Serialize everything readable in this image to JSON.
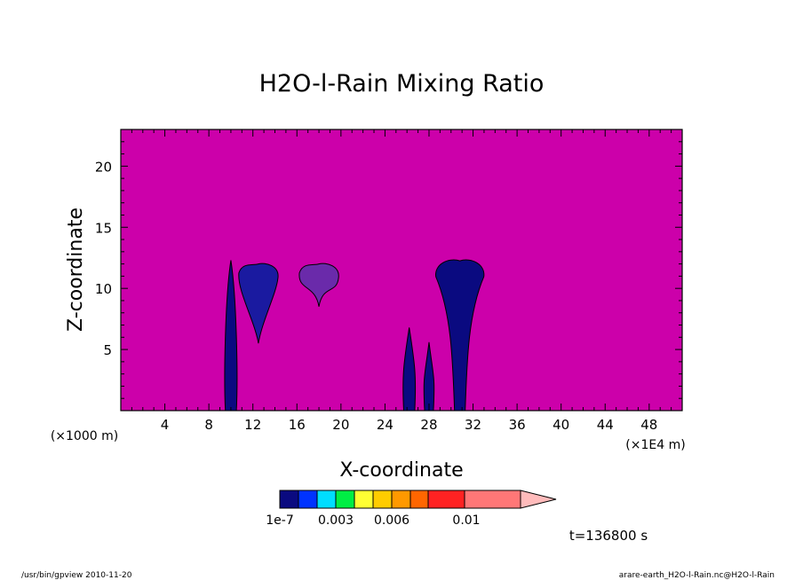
{
  "chart_data": {
    "type": "heatmap",
    "title": "H2O-l-Rain Mixing Ratio",
    "xlabel": "X-coordinate",
    "ylabel": "Z-coordinate",
    "x_unit_left": "(×1000 m)",
    "x_unit_right": "(×1E4 m)",
    "xlim": [
      0,
      51
    ],
    "ylim": [
      0,
      23
    ],
    "xticks": [
      4,
      8,
      12,
      16,
      20,
      24,
      28,
      32,
      36,
      40,
      44,
      48
    ],
    "yticks": [
      5,
      10,
      15,
      20
    ],
    "background_color": "#cc00aa",
    "colorbar": {
      "colors": [
        "#0a0a80",
        "#0033ff",
        "#00ddff",
        "#00ee44",
        "#ffff33",
        "#ffcc00",
        "#ff9900",
        "#ff6600",
        "#ff2222",
        "#ff7777",
        "#ffbbbb"
      ],
      "labels": [
        "1e-7",
        "0.003",
        "0.006",
        "0.01"
      ]
    },
    "time_label": "t=136800 s",
    "features": [
      {
        "kind": "column",
        "x_center": 10,
        "half_width": 0.5,
        "z_top": 12.3,
        "color": "#0a0a80"
      },
      {
        "kind": "cloud",
        "x_center": 12.5,
        "z_bottom": 5.5,
        "z_top": 12,
        "color": "#1a1aa0"
      },
      {
        "kind": "cloud",
        "x_center": 18,
        "z_bottom": 8.5,
        "z_top": 12,
        "color": "#6a2aaa"
      },
      {
        "kind": "column",
        "x_center": 26.2,
        "half_width": 0.5,
        "z_top": 6.8,
        "color": "#0a0a80"
      },
      {
        "kind": "column",
        "x_center": 28,
        "half_width": 0.4,
        "z_top": 5.6,
        "color": "#0a0a80"
      },
      {
        "kind": "plume",
        "x_center": 30.8,
        "z_bottom": 0,
        "z_top": 12.4,
        "color": "#0a0a80"
      }
    ]
  },
  "footer": {
    "left": "/usr/bin/gpview  2010-11-20",
    "right": "arare-earth_H2O-l-Rain.nc@H2O-l-Rain"
  }
}
